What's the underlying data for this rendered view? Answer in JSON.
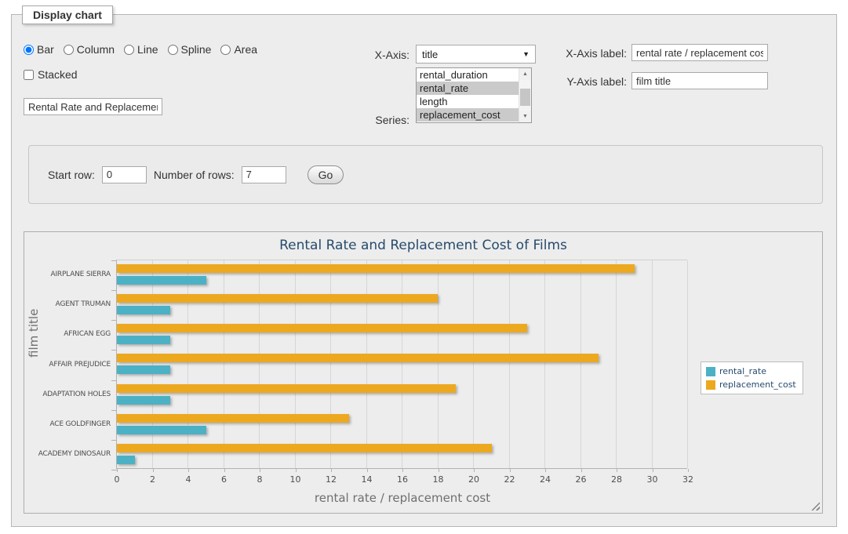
{
  "panel": {
    "legend_title": "Display chart",
    "chart_types": [
      {
        "label": "Bar",
        "checked": true
      },
      {
        "label": "Column",
        "checked": false
      },
      {
        "label": "Line",
        "checked": false
      },
      {
        "label": "Spline",
        "checked": false
      },
      {
        "label": "Area",
        "checked": false
      }
    ],
    "stacked_label": "Stacked",
    "stacked_checked": false,
    "chart_title_value": "Rental Rate and Replacement Cost of Films",
    "x_axis": {
      "label": "X-Axis:",
      "selected": "title"
    },
    "series": {
      "label": "Series:",
      "options": [
        {
          "name": "rental_duration",
          "selected": false
        },
        {
          "name": "rental_rate",
          "selected": true
        },
        {
          "name": "length",
          "selected": false
        },
        {
          "name": "replacement_cost",
          "selected": true
        }
      ]
    },
    "x_axis_label": {
      "label": "X-Axis label:",
      "value": "rental rate / replacement cost"
    },
    "y_axis_label": {
      "label": "Y-Axis label:",
      "value": "film title"
    }
  },
  "row_controls": {
    "start_row_label": "Start row:",
    "start_row_value": "0",
    "num_rows_label": "Number of rows:",
    "num_rows_value": "7",
    "go_label": "Go"
  },
  "icons": {
    "dropdown_arrow": "▼",
    "scroll_up_arrow": "▲",
    "scroll_down_arrow": "▼"
  },
  "chart_data": {
    "type": "bar",
    "title": "Rental Rate and Replacement Cost of Films",
    "categories": [
      "AIRPLANE SIERRA",
      "AGENT TRUMAN",
      "AFRICAN EGG",
      "AFFAIR PREJUDICE",
      "ADAPTATION HOLES",
      "ACE GOLDFINGER",
      "ACADEMY DINOSAUR"
    ],
    "series": [
      {
        "name": "rental_rate",
        "color": "#4cb1c4",
        "values": [
          4.99,
          2.99,
          2.99,
          2.99,
          2.99,
          4.99,
          0.99
        ]
      },
      {
        "name": "replacement_cost",
        "color": "#eca920",
        "values": [
          28.99,
          17.99,
          22.99,
          26.99,
          18.99,
          12.99,
          20.99
        ]
      }
    ],
    "xlabel": "rental rate / replacement cost",
    "ylabel": "film title",
    "xlim": [
      0,
      32
    ],
    "x_ticks": [
      0,
      2,
      4,
      6,
      8,
      10,
      12,
      14,
      16,
      18,
      20,
      22,
      24,
      26,
      28,
      30,
      32
    ],
    "grid": true,
    "legend_position": "right",
    "background": "#ededed"
  }
}
